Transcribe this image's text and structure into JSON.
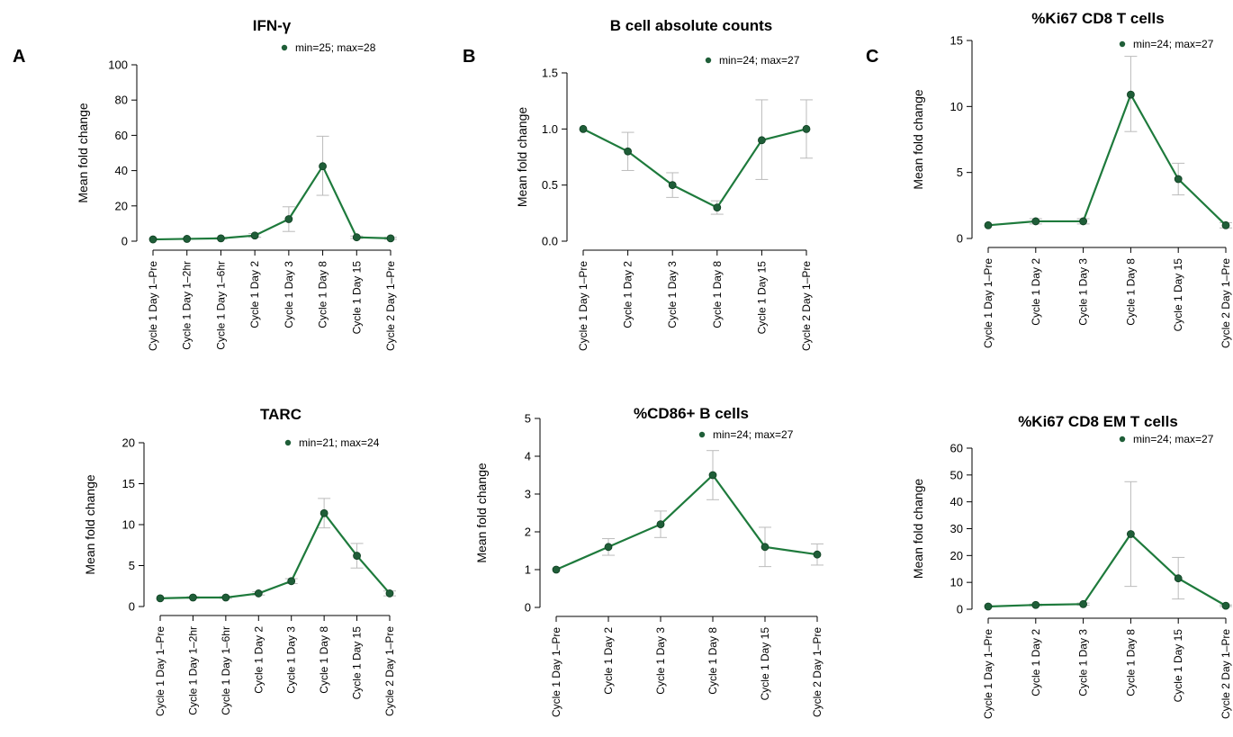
{
  "panel_letters": [
    "A",
    "B",
    "C"
  ],
  "series_color": "#1e7a3c",
  "marker_fill": "#1f5e38",
  "errorbar_color": "#bbbbbb",
  "chart_data": [
    {
      "type": "line",
      "title": "IFN-γ",
      "ylabel": "Mean fold change",
      "xlabel": "",
      "legend": "min=25; max=28",
      "legend_position": "top-right",
      "grid": false,
      "ylim": [
        0,
        100
      ],
      "yticks": [
        "0",
        "20",
        "40",
        "60",
        "80",
        "100"
      ],
      "categories": [
        "Cycle 1 Day 1–Pre",
        "Cycle 1 Day 1–2hr",
        "Cycle 1 Day 1–6hr",
        "Cycle 1 Day 2",
        "Cycle 1 Day 3",
        "Cycle 1 Day 8",
        "Cycle 1 Day 15",
        "Cycle 2 Day 1–Pre"
      ],
      "values": [
        1,
        1.3,
        1.6,
        3.2,
        12.5,
        42.5,
        2.2,
        1.6
      ],
      "error_low": [
        1,
        1.1,
        1.2,
        2.2,
        5.5,
        26,
        1.5,
        1.0
      ],
      "error_high": [
        1,
        1.5,
        2.0,
        4.3,
        19.5,
        59.5,
        2.9,
        2.2
      ]
    },
    {
      "type": "line",
      "title": "B cell absolute counts",
      "ylabel": "Mean fold change",
      "xlabel": "",
      "legend": "min=24; max=27",
      "legend_position": "top-right",
      "grid": false,
      "ylim": [
        0,
        1.5
      ],
      "yticks": [
        "0.0",
        "0.5",
        "1.0",
        "1.5"
      ],
      "categories": [
        "Cycle 1 Day 1–Pre",
        "Cycle 1 Day 2",
        "Cycle 1 Day 3",
        "Cycle 1 Day 8",
        "Cycle 1 Day 15",
        "Cycle 2 Day 1–Pre"
      ],
      "values": [
        1.0,
        0.8,
        0.5,
        0.3,
        0.9,
        1.0
      ],
      "error_low": [
        1.0,
        0.63,
        0.39,
        0.24,
        0.55,
        0.74
      ],
      "error_high": [
        1.0,
        0.97,
        0.61,
        0.36,
        1.26,
        1.26
      ]
    },
    {
      "type": "line",
      "title": "%Ki67 CD8 T cells",
      "ylabel": "Mean fold change",
      "xlabel": "",
      "legend": "min=24; max=27",
      "legend_position": "top-right",
      "grid": false,
      "ylim": [
        0,
        15
      ],
      "yticks": [
        "0",
        "5",
        "10",
        "15"
      ],
      "categories": [
        "Cycle 1 Day 1–Pre",
        "Cycle 1 Day 2",
        "Cycle 1 Day 3",
        "Cycle 1 Day 8",
        "Cycle 1 Day 15",
        "Cycle 2 Day 1–Pre"
      ],
      "values": [
        1.0,
        1.3,
        1.3,
        10.9,
        4.5,
        1.0
      ],
      "error_low": [
        1.0,
        1.1,
        1.1,
        8.1,
        3.3,
        0.8
      ],
      "error_high": [
        1.0,
        1.5,
        1.5,
        13.8,
        5.7,
        1.2
      ]
    },
    {
      "type": "line",
      "title": "TARC",
      "ylabel": "Mean fold change",
      "xlabel": "",
      "legend": "min=21; max=24",
      "legend_position": "top-right",
      "grid": false,
      "ylim": [
        0,
        20
      ],
      "yticks": [
        "0",
        "5",
        "10",
        "15",
        "20"
      ],
      "categories": [
        "Cycle 1 Day 1–Pre",
        "Cycle 1 Day 1–2hr",
        "Cycle 1 Day 1–6hr",
        "Cycle 1 Day 2",
        "Cycle 1 Day 3",
        "Cycle 1 Day 8",
        "Cycle 1 Day 15",
        "Cycle 2 Day 1–Pre"
      ],
      "values": [
        1.0,
        1.1,
        1.1,
        1.6,
        3.1,
        11.4,
        6.2,
        1.6
      ],
      "error_low": [
        1.0,
        1.0,
        1.0,
        1.4,
        2.8,
        9.6,
        4.7,
        1.3
      ],
      "error_high": [
        1.0,
        1.2,
        1.2,
        1.8,
        3.4,
        13.2,
        7.7,
        1.9
      ]
    },
    {
      "type": "line",
      "title": "%CD86+ B cells",
      "ylabel": "Mean fold change",
      "xlabel": "",
      "legend": "min=24; max=27",
      "legend_position": "top-right",
      "grid": false,
      "ylim": [
        0,
        5
      ],
      "yticks": [
        "0",
        "1",
        "2",
        "3",
        "4",
        "5"
      ],
      "categories": [
        "Cycle 1 Day 1–Pre",
        "Cycle 1 Day 2",
        "Cycle 1 Day 3",
        "Cycle 1 Day 8",
        "Cycle 1 Day 15",
        "Cycle 2 Day 1–Pre"
      ],
      "values": [
        1.0,
        1.6,
        2.2,
        3.5,
        1.6,
        1.4
      ],
      "error_low": [
        1.0,
        1.38,
        1.85,
        2.85,
        1.08,
        1.12
      ],
      "error_high": [
        1.0,
        1.82,
        2.55,
        4.15,
        2.12,
        1.68
      ]
    },
    {
      "type": "line",
      "title": "%Ki67 CD8 EM T cells",
      "ylabel": "Mean fold change",
      "xlabel": "",
      "legend": "min=24; max=27",
      "legend_position": "top-right",
      "grid": false,
      "ylim": [
        0,
        60
      ],
      "yticks": [
        "0",
        "10",
        "20",
        "30",
        "40",
        "50",
        "60"
      ],
      "categories": [
        "Cycle 1 Day 1–Pre",
        "Cycle 1 Day 2",
        "Cycle 1 Day 3",
        "Cycle 1 Day 8",
        "Cycle 1 Day 15",
        "Cycle 2 Day 1–Pre"
      ],
      "values": [
        1.0,
        1.6,
        1.9,
        28.0,
        11.5,
        1.3
      ],
      "error_low": [
        1.0,
        1.3,
        1.5,
        8.5,
        3.8,
        1.0
      ],
      "error_high": [
        1.0,
        1.9,
        2.3,
        47.5,
        19.3,
        1.6
      ]
    }
  ]
}
